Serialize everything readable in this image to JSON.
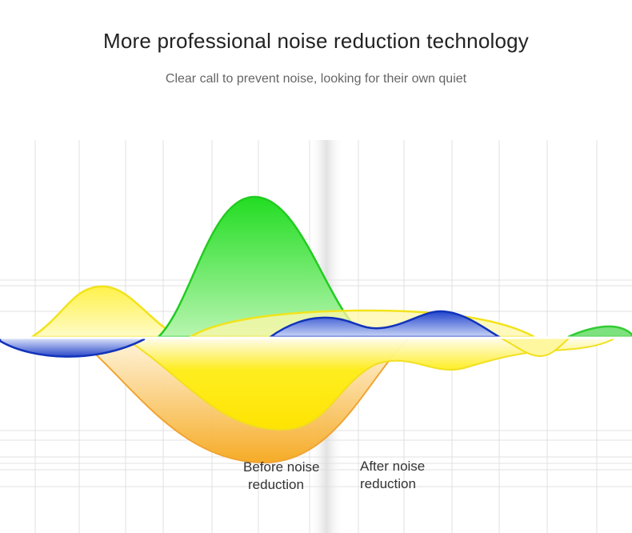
{
  "header": {
    "title": "More professional noise reduction technology",
    "subtitle": "Clear call to prevent noise, looking for their own quiet"
  },
  "labels": {
    "before_line1": "Before noise",
    "before_line2": "reduction",
    "after_line1": "After noise",
    "after_line2": "reduction"
  },
  "colors": {
    "green": "#33dd33",
    "yellow": "#ffee22",
    "orange": "#f5aa22",
    "blue": "#1133bb",
    "grid": "#e2e2e2"
  }
}
